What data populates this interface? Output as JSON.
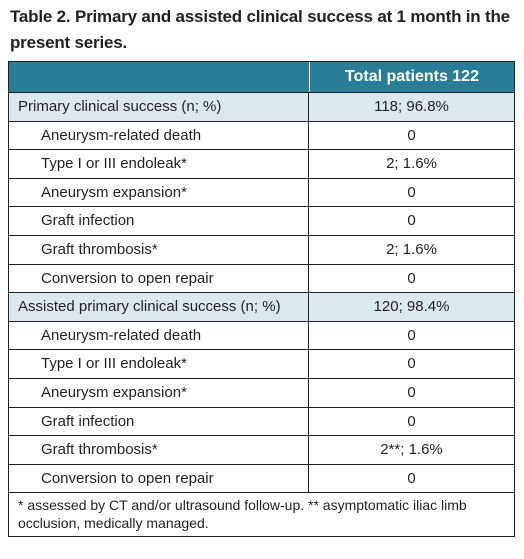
{
  "caption": "Table 2. Primary and assisted clinical success at 1 month in the present series.",
  "table": {
    "header": [
      "",
      "Total patients 122"
    ],
    "rows": [
      {
        "label": "Primary clinical success (n; %)",
        "value": "118; 96.8%",
        "level": "main"
      },
      {
        "label": "Aneurysm-related death",
        "value": "0",
        "level": "sub"
      },
      {
        "label": "Type I or III endoleak*",
        "value": "2; 1.6%",
        "level": "sub"
      },
      {
        "label": "Aneurysm expansion*",
        "value": "0",
        "level": "sub"
      },
      {
        "label": "Graft infection",
        "value": "0",
        "level": "sub"
      },
      {
        "label": "Graft thrombosis*",
        "value": "2; 1.6%",
        "level": "sub"
      },
      {
        "label": "Conversion to open repair",
        "value": "0",
        "level": "sub"
      },
      {
        "label": "Assisted primary clinical success (n; %)",
        "value": "120; 98.4%",
        "level": "main"
      },
      {
        "label": "Aneurysm-related death",
        "value": "0",
        "level": "sub"
      },
      {
        "label": "Type I or III endoleak*",
        "value": "0",
        "level": "sub"
      },
      {
        "label": "Aneurysm expansion*",
        "value": "0",
        "level": "sub"
      },
      {
        "label": "Graft infection",
        "value": "0",
        "level": "sub"
      },
      {
        "label": "Graft thrombosis*",
        "value": "2**; 1.6%",
        "level": "sub"
      },
      {
        "label": "Conversion to open repair",
        "value": "0",
        "level": "sub"
      }
    ],
    "footnote": "* assessed by CT and/or ultrasound follow-up. ** asymptomatic iliac limb occlusion, medically managed."
  },
  "colors": {
    "header_bg": "#2a7d97",
    "main_row_bg": "#dbe8ee",
    "text": "#231f20"
  }
}
